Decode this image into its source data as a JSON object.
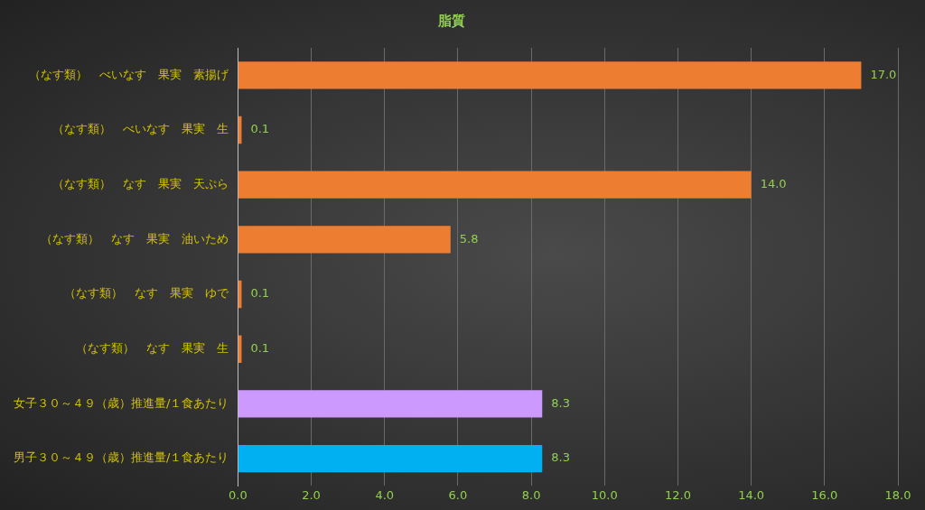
{
  "chart_data": {
    "type": "bar",
    "orientation": "horizontal",
    "title": "脂質",
    "categories": [
      "（なす類）　べいなす　果実　素揚げ",
      "（なす類）　べいなす　果実　生",
      "（なす類）　なす　果実　天ぷら",
      "（なす類）　なす　果実　油いため",
      "（なす類）　なす　果実　ゆで",
      "（なす類）　なす　果実　生",
      "女子３０～４９（歳）推進量/１食あたり",
      "男子３０～４９（歳）推進量/１食あたり"
    ],
    "values": [
      17.0,
      0.1,
      14.0,
      5.8,
      0.1,
      0.1,
      8.3,
      8.3
    ],
    "colors": [
      "#ed7d31",
      "#ed7d31",
      "#ed7d31",
      "#ed7d31",
      "#ed7d31",
      "#ed7d31",
      "#cc99ff",
      "#00b0f0"
    ],
    "value_labels": [
      "17.0",
      "0.1",
      "14.0",
      "5.8",
      "0.1",
      "0.1",
      "8.3",
      "8.3"
    ],
    "xlim": [
      0,
      18
    ],
    "xticks": [
      {
        "value": 0,
        "label": "0.0"
      },
      {
        "value": 2,
        "label": "2.0"
      },
      {
        "value": 4,
        "label": "4.0"
      },
      {
        "value": 6,
        "label": "6.0"
      },
      {
        "value": 8,
        "label": "8.0"
      },
      {
        "value": 10,
        "label": "10.0"
      },
      {
        "value": 12,
        "label": "12.0"
      },
      {
        "value": 14,
        "label": "14.0"
      },
      {
        "value": 16,
        "label": "16.0"
      },
      {
        "value": 18,
        "label": "18.0"
      }
    ],
    "grid": "x",
    "legend": false
  }
}
